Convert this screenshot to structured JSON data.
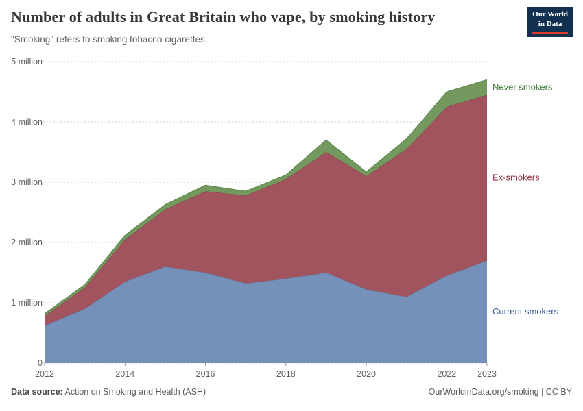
{
  "header": {
    "title": "Number of adults in Great Britain who vape, by smoking history",
    "subtitle": "\"Smoking\" refers to smoking tobacco cigarettes.",
    "logo": {
      "line1": "Our World",
      "line2": "in Data",
      "bg_color": "#12304f",
      "accent_color": "#dc3e26"
    }
  },
  "chart_data": {
    "type": "area",
    "stacked": true,
    "title": "Number of adults in Great Britain who vape, by smoking history",
    "xlabel": "",
    "ylabel": "",
    "x": [
      2012,
      2013,
      2014,
      2015,
      2016,
      2017,
      2018,
      2019,
      2020,
      2021,
      2022,
      2023
    ],
    "series": [
      {
        "name": "Current smokers",
        "values": [
          0.62,
          0.9,
          1.35,
          1.6,
          1.5,
          1.32,
          1.4,
          1.5,
          1.22,
          1.1,
          1.45,
          1.7
        ],
        "fill": "#7591b9",
        "edge": "#5a7ca8",
        "label_color": "#3a5e94"
      },
      {
        "name": "Ex-smokers",
        "values": [
          0.16,
          0.35,
          0.7,
          0.95,
          1.35,
          1.46,
          1.65,
          2.0,
          1.88,
          2.45,
          2.8,
          2.75
        ],
        "fill": "#a2545e",
        "edge": "#8d3f4c",
        "label_color": "#8f2d40"
      },
      {
        "name": "Never smokers",
        "values": [
          0.04,
          0.05,
          0.07,
          0.08,
          0.1,
          0.07,
          0.07,
          0.2,
          0.07,
          0.17,
          0.25,
          0.25
        ],
        "fill": "#74995f",
        "edge": "#5d8a4e",
        "label_color": "#3f7a3c"
      }
    ],
    "ylim": [
      0,
      5
    ],
    "y_ticks": [
      {
        "value": 0,
        "label": "0"
      },
      {
        "value": 1,
        "label": "1 million"
      },
      {
        "value": 2,
        "label": "2 million"
      },
      {
        "value": 3,
        "label": "3 million"
      },
      {
        "value": 4,
        "label": "4 million"
      },
      {
        "value": 5,
        "label": "5 million"
      }
    ],
    "x_ticks": [
      2012,
      2014,
      2016,
      2018,
      2020,
      2022,
      2023
    ],
    "grid": true,
    "legend_position": "right-inline-labels"
  },
  "footer": {
    "source_label": "Data source:",
    "source_text": " Action on Smoking and Health (ASH)",
    "link_text": "OurWorldinData.org/smoking | CC BY"
  }
}
